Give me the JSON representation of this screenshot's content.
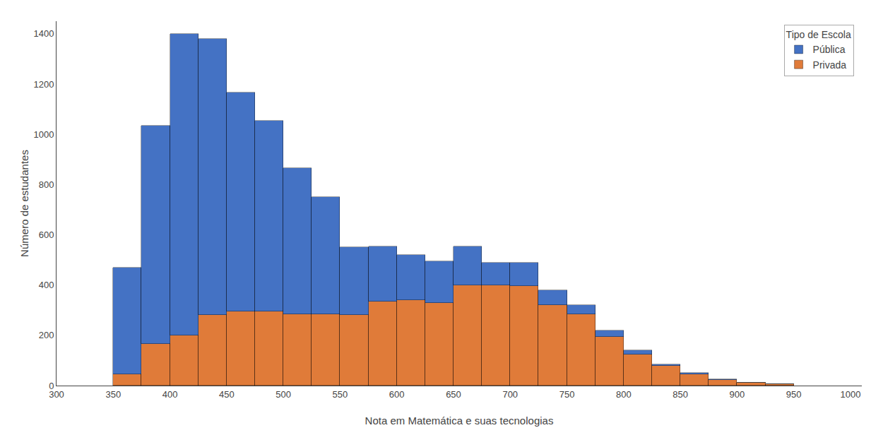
{
  "chart_data": {
    "type": "histogram",
    "xlabel": "Nota em Matemática e suas tecnologias",
    "ylabel": "Número de estudantes",
    "legend_title": "Tipo de Escola",
    "bins": [
      350,
      375,
      400,
      425,
      450,
      475,
      500,
      525,
      550,
      575,
      600,
      625,
      650,
      675,
      700,
      725,
      750,
      775,
      800,
      825,
      850,
      875,
      900,
      925,
      950
    ],
    "series": [
      {
        "name": "Privada",
        "color": "#E07B39",
        "values": [
          45,
          165,
          200,
          280,
          295,
          295,
          285,
          285,
          280,
          335,
          340,
          330,
          400,
          400,
          395,
          320,
          285,
          195,
          125,
          80,
          45,
          23,
          10,
          5
        ]
      },
      {
        "name": "Pública",
        "color": "#4472C4",
        "values": [
          425,
          870,
          1200,
          1100,
          870,
          760,
          580,
          465,
          270,
          220,
          180,
          165,
          155,
          90,
          95,
          60,
          35,
          25,
          15,
          5,
          5,
          3,
          1,
          0
        ]
      }
    ],
    "stacked": true,
    "xlim": [
      300,
      1010
    ],
    "xticks": [
      300,
      350,
      400,
      450,
      500,
      550,
      600,
      650,
      700,
      750,
      800,
      850,
      900,
      950,
      1000
    ],
    "ylim": [
      0,
      1450
    ],
    "yticks": [
      0,
      200,
      400,
      600,
      800,
      1000,
      1200,
      1400
    ],
    "grid": false,
    "legend": "upper right"
  }
}
